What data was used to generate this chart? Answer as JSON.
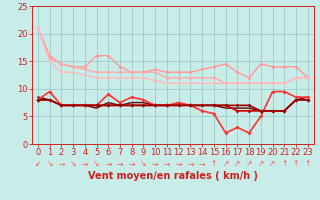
{
  "background_color": "#c8ece8",
  "grid_color": "#99cccc",
  "xlabel": "Vent moyen/en rafales ( km/h )",
  "xlim": [
    -0.5,
    23.5
  ],
  "ylim": [
    0,
    25
  ],
  "yticks": [
    0,
    5,
    10,
    15,
    20,
    25
  ],
  "xticks": [
    0,
    1,
    2,
    3,
    4,
    5,
    6,
    7,
    8,
    9,
    10,
    11,
    12,
    13,
    14,
    15,
    16,
    17,
    18,
    19,
    20,
    21,
    22,
    23
  ],
  "series": [
    {
      "y": [
        21,
        16,
        14.5,
        14,
        14,
        16,
        16,
        14,
        13,
        13,
        13.5,
        13,
        13,
        13,
        13.5,
        14,
        14.5,
        13,
        12,
        14.5,
        14,
        14,
        14,
        12
      ],
      "color": "#ff9999",
      "lw": 1.0,
      "marker": "D",
      "ms": 2.0
    },
    {
      "y": [
        21,
        15.5,
        14.5,
        14,
        13.5,
        13,
        13,
        13,
        13,
        13,
        13,
        12,
        12,
        12,
        12,
        12,
        11,
        11,
        11,
        11,
        11,
        11,
        12,
        12
      ],
      "color": "#ffaaaa",
      "lw": 1.0,
      "marker": "D",
      "ms": 2.0
    },
    {
      "y": [
        21,
        15,
        13,
        13,
        12.5,
        12,
        12,
        12,
        12,
        12,
        11.5,
        11,
        11,
        11,
        11,
        11,
        11,
        11,
        11,
        11,
        11,
        11,
        12,
        12
      ],
      "color": "#ffbbbb",
      "lw": 1.0,
      "marker": "D",
      "ms": 2.0
    },
    {
      "y": [
        8,
        9.5,
        7,
        7,
        7,
        7,
        9,
        7.5,
        8.5,
        8,
        7,
        7,
        7.5,
        7,
        6,
        5.5,
        2,
        3,
        2,
        5,
        9.5,
        9.5,
        8.5,
        8.5
      ],
      "color": "#ff3333",
      "lw": 1.2,
      "marker": "D",
      "ms": 2.0
    },
    {
      "y": [
        8,
        8,
        7,
        7,
        7,
        7,
        7,
        7,
        7,
        7,
        7,
        7,
        7,
        7,
        7,
        7,
        7,
        6,
        6,
        6,
        6,
        6,
        8,
        8
      ],
      "color": "#cc0000",
      "lw": 1.2,
      "marker": "D",
      "ms": 2.0
    },
    {
      "y": [
        8,
        8,
        7,
        7,
        7,
        7,
        7,
        7,
        7,
        7,
        7,
        7,
        7,
        7,
        7,
        7,
        7,
        7,
        7,
        6,
        6,
        6,
        8,
        8
      ],
      "color": "#990000",
      "lw": 1.2,
      "marker": "D",
      "ms": 2.0
    },
    {
      "y": [
        8.5,
        8,
        7,
        7,
        7,
        6.5,
        7.5,
        7,
        7.5,
        7.5,
        7,
        7,
        7,
        7,
        7,
        7,
        6.5,
        6.5,
        6.5,
        6,
        6,
        6,
        8,
        8.5
      ],
      "color": "#660000",
      "lw": 1.0,
      "marker": null,
      "ms": 0
    }
  ],
  "arrow_chars": [
    "↙",
    "↘",
    "→",
    "↘",
    "→",
    "↘",
    "→",
    "→",
    "→",
    "↘",
    "→",
    "→",
    "→",
    "→",
    "→",
    "↑",
    "↗",
    "↗",
    "↗",
    "↗",
    "↗",
    "↑",
    "↑",
    "↑"
  ],
  "arrow_color": "#ff5555",
  "axis_fontsize": 7,
  "tick_fontsize": 6
}
